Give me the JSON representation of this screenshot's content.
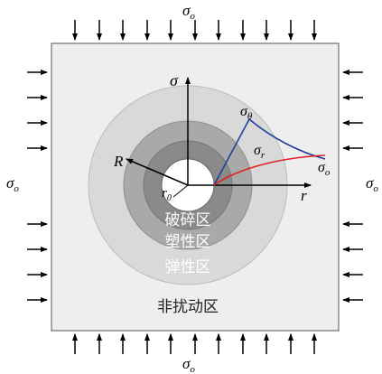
{
  "labels": {
    "sigma_o": "σ",
    "sigma_o_sub": "o",
    "sigma": "σ",
    "sigma_theta": "σ",
    "sigma_theta_sub": "θ",
    "sigma_r": "σ",
    "sigma_r_sub": "r",
    "R": "R",
    "r0": "r",
    "r0_sub": "0",
    "r_axis": "r"
  },
  "zones": {
    "fracture": "破碎区",
    "plastic": "塑性区",
    "elastic": "弹性区",
    "undisturbed": "非扰动区"
  },
  "colors": {
    "square_fill": "#eeeeee",
    "undisturbed_fill": "#d9d9d9",
    "elastic_fill": "#a9a9a9",
    "plastic_fill": "#8a8a8a",
    "fracture_fill": "#6f6f6f",
    "tunnel_fill": "#ffffff",
    "sigma_theta_curve": "#1f3fa0",
    "sigma_r_curve": "#e02020"
  }
}
